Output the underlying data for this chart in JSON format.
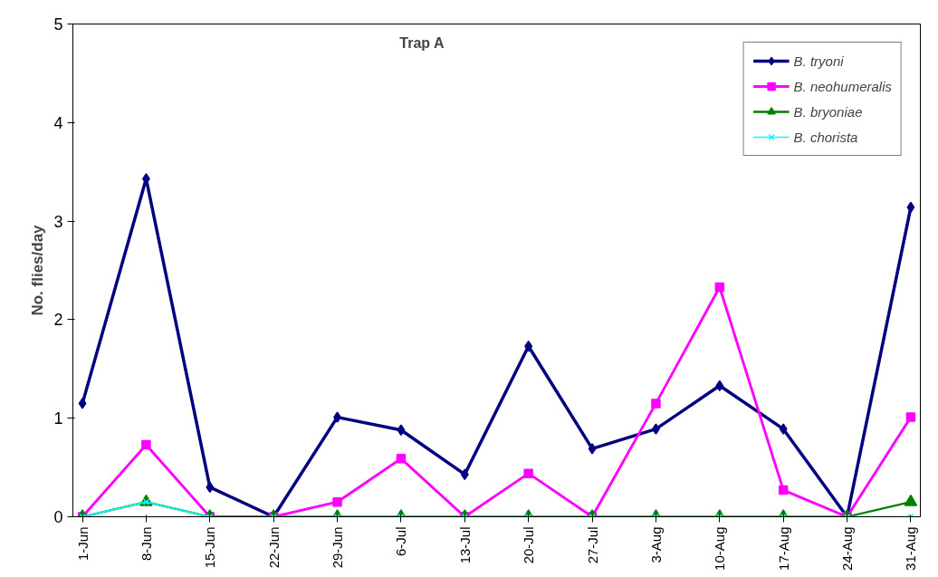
{
  "chart_data": {
    "type": "line",
    "title": "Trap A",
    "ylabel": "No. flies/day",
    "categories": [
      "1-Jun",
      "8-Jun",
      "15-Jun",
      "22-Jun",
      "29-Jun",
      "6-Jul",
      "13-Jul",
      "20-Jul",
      "27-Jul",
      "3-Aug",
      "10-Aug",
      "17-Aug",
      "24-Aug",
      "31-Aug"
    ],
    "ylim": [
      0,
      5
    ],
    "yticks": [
      0,
      1,
      2,
      3,
      4,
      5
    ],
    "grid": false,
    "legend": "top right",
    "series": [
      {
        "name": "B. tryoni",
        "color": "#000080",
        "marker": "diamond",
        "values": [
          1.15,
          3.43,
          0.3,
          0,
          1.01,
          0.88,
          0.43,
          1.73,
          0.69,
          0.89,
          1.33,
          0.89,
          0,
          3.14
        ]
      },
      {
        "name": "B. neohumeralis",
        "color": "#ff00ff",
        "marker": "square",
        "values": [
          0,
          0.73,
          0,
          0,
          0.15,
          0.59,
          0,
          0.44,
          0,
          1.15,
          2.33,
          0.27,
          0,
          1.01
        ]
      },
      {
        "name": "B. bryoniae",
        "color": "#008000",
        "marker": "triangle",
        "values": [
          0,
          0.15,
          0,
          0,
          0,
          0,
          0,
          0,
          0,
          0,
          0,
          0,
          0,
          0.15
        ]
      },
      {
        "name": "B. chorista",
        "color": "#00ffff",
        "marker": "cross",
        "values": [
          0,
          0.15,
          0,
          0,
          0,
          0,
          0,
          0,
          0,
          0,
          0,
          0,
          0,
          0
        ]
      }
    ]
  }
}
